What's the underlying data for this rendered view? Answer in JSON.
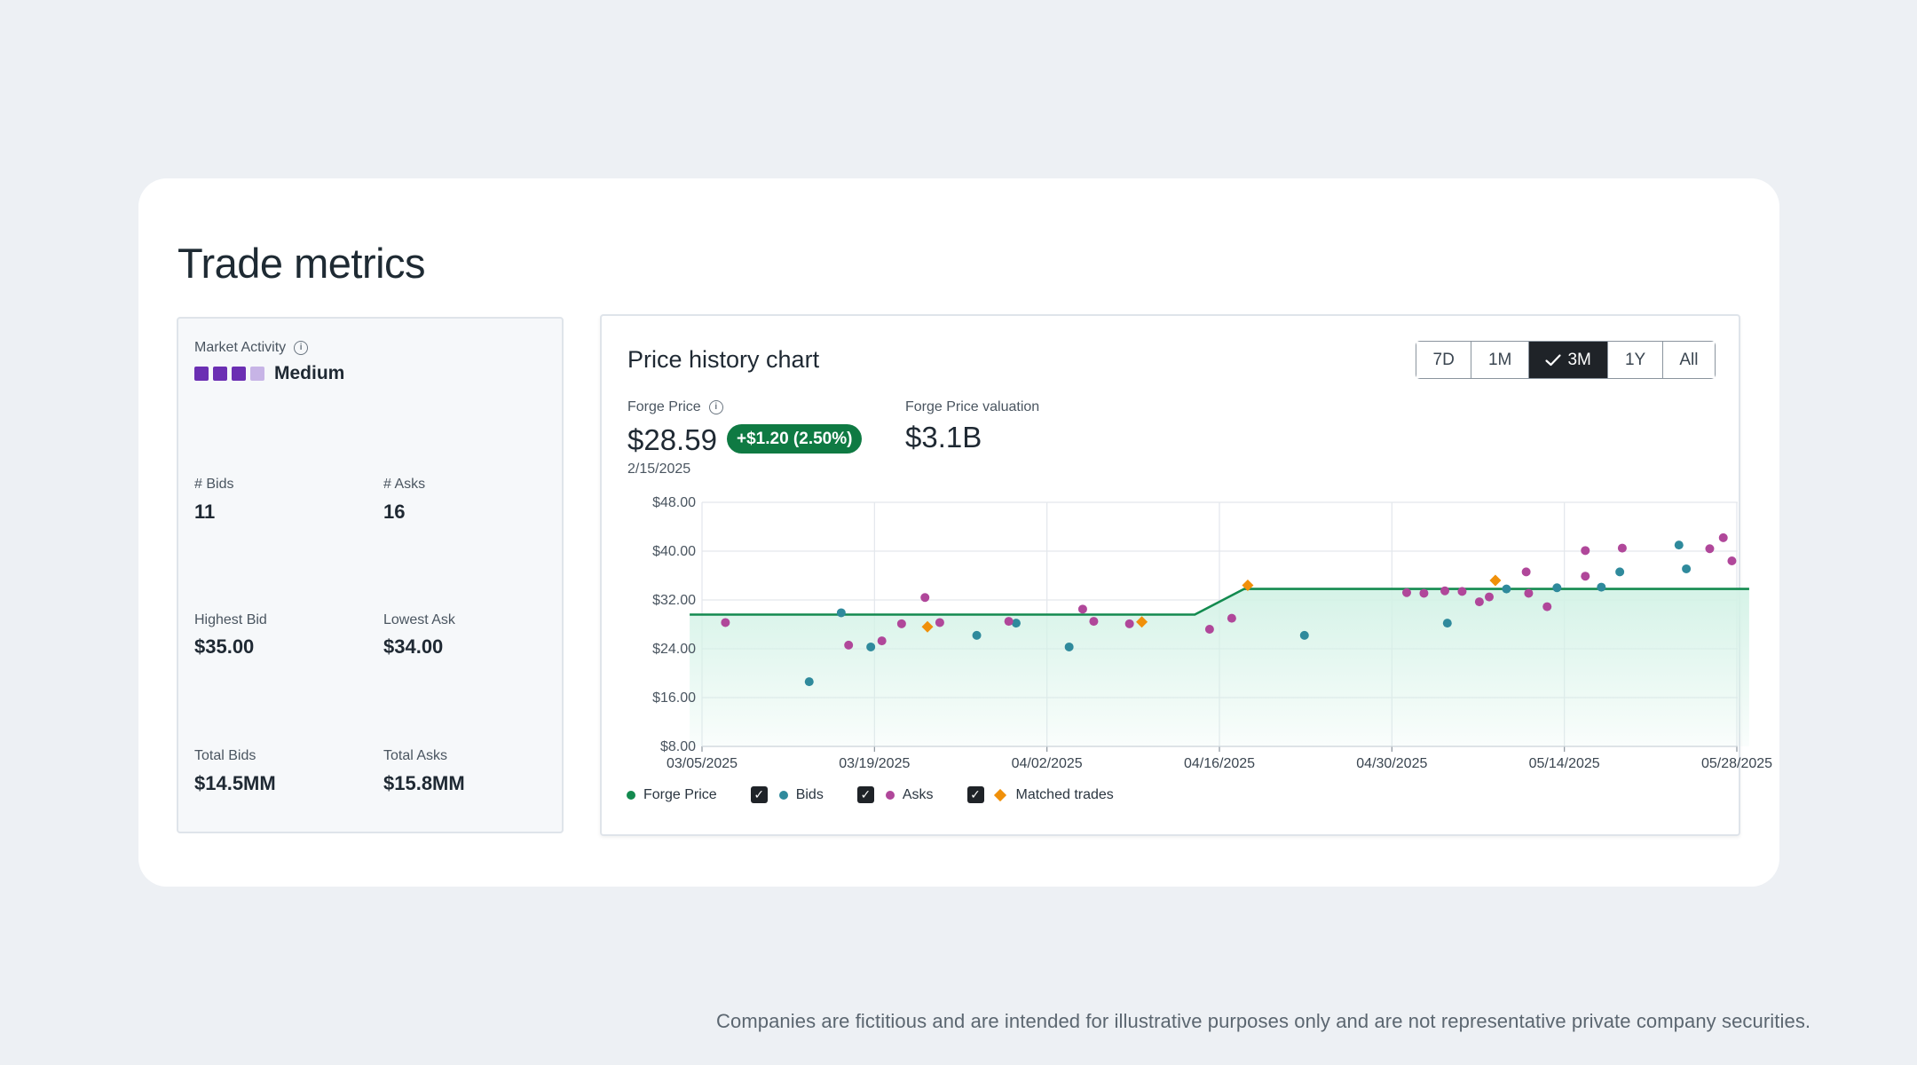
{
  "page_title": "Trade metrics",
  "stats": {
    "market_activity_label": "Market Activity",
    "market_activity_value": "Medium",
    "market_activity_level": 3,
    "market_activity_max": 4,
    "bids_label": "# Bids",
    "bids_value": "11",
    "asks_label": "# Asks",
    "asks_value": "16",
    "highest_bid_label": "Highest Bid",
    "highest_bid_value": "$35.00",
    "lowest_ask_label": "Lowest Ask",
    "lowest_ask_value": "$34.00",
    "total_bids_label": "Total Bids",
    "total_bids_value": "$14.5MM",
    "total_asks_label": "Total Asks",
    "total_asks_value": "$15.8MM"
  },
  "chart_panel": {
    "title": "Price history chart",
    "ranges": [
      "7D",
      "1M",
      "3M",
      "1Y",
      "All"
    ],
    "active_range": "3M",
    "forge_price_label": "Forge Price",
    "forge_price_value": "$28.59",
    "change_badge": "+$1.20 (2.50%)",
    "price_date": "2/15/2025",
    "valuation_label": "Forge Price valuation",
    "valuation_value": "$3.1B",
    "legend": {
      "forge_price": "Forge Price",
      "bids": "Bids",
      "asks": "Asks",
      "matched": "Matched trades"
    }
  },
  "colors": {
    "forge_price": "#138a4f",
    "bids": "#2f8a9c",
    "asks": "#b0479a",
    "matched": "#f0900a",
    "activity_on": "#6b2fb3",
    "activity_off": "#c7b4e6",
    "badge": "#0f7a43"
  },
  "disclaimer": "Companies are fictitious and are intended for illustrative purposes only and are not representative private company securities.",
  "chart_data": {
    "type": "scatter",
    "x_tick_labels": [
      "03/05/2025",
      "03/19/2025",
      "04/02/2025",
      "04/16/2025",
      "04/30/2025",
      "05/14/2025",
      "05/28/2025"
    ],
    "y_tick_labels": [
      "$48.00",
      "$40.00",
      "$32.00",
      "$24.00",
      "$16.00",
      "$8.00"
    ],
    "ylim": [
      8,
      48
    ],
    "x_range_days": [
      0,
      84
    ],
    "grid": true,
    "series": [
      {
        "name": "Forge Price",
        "kind": "line",
        "points": [
          [
            -1,
            29.6
          ],
          [
            40,
            29.6
          ],
          [
            44,
            33.8
          ],
          [
            85,
            33.8
          ]
        ]
      },
      {
        "name": "Bids",
        "kind": "dots",
        "points": [
          [
            8.7,
            18.6
          ],
          [
            11.3,
            29.9
          ],
          [
            13.7,
            24.3
          ],
          [
            22.3,
            26.2
          ],
          [
            25.5,
            28.2
          ],
          [
            29.8,
            24.3
          ],
          [
            48.9,
            26.2
          ],
          [
            60.5,
            28.2
          ],
          [
            65.3,
            33.8
          ],
          [
            69.4,
            34.0
          ],
          [
            73.0,
            34.1
          ],
          [
            74.5,
            36.6
          ],
          [
            79.3,
            41.0
          ],
          [
            79.9,
            37.1
          ]
        ]
      },
      {
        "name": "Asks",
        "kind": "dots",
        "points": [
          [
            1.9,
            28.3
          ],
          [
            11.9,
            24.6
          ],
          [
            14.6,
            25.3
          ],
          [
            16.2,
            28.1
          ],
          [
            18.1,
            32.4
          ],
          [
            19.3,
            28.3
          ],
          [
            24.9,
            28.5
          ],
          [
            30.9,
            30.5
          ],
          [
            31.8,
            28.5
          ],
          [
            34.7,
            28.1
          ],
          [
            41.2,
            27.2
          ],
          [
            43.0,
            29.0
          ],
          [
            57.2,
            33.2
          ],
          [
            58.6,
            33.1
          ],
          [
            60.3,
            33.5
          ],
          [
            61.7,
            33.4
          ],
          [
            63.1,
            31.7
          ],
          [
            63.9,
            32.5
          ],
          [
            67.1,
            33.1
          ],
          [
            66.9,
            36.6
          ],
          [
            68.6,
            30.9
          ],
          [
            71.7,
            40.1
          ],
          [
            71.7,
            35.9
          ],
          [
            74.7,
            40.5
          ],
          [
            81.8,
            40.4
          ],
          [
            82.9,
            42.2
          ],
          [
            83.6,
            38.4
          ]
        ]
      },
      {
        "name": "Matched trades",
        "kind": "diamonds",
        "points": [
          [
            18.3,
            27.6
          ],
          [
            35.7,
            28.4
          ],
          [
            44.3,
            34.4
          ],
          [
            64.4,
            35.2
          ]
        ]
      }
    ]
  }
}
